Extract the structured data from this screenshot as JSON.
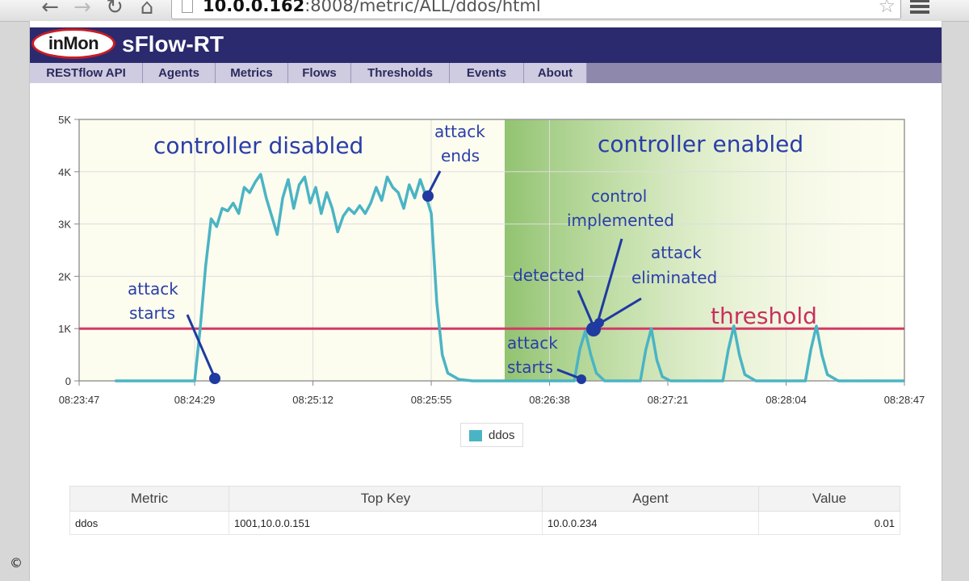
{
  "browser": {
    "back_icon": "←",
    "forward_icon": "→",
    "reload_icon": "↻",
    "home_icon": "⌂",
    "url_host": "10.0.0.162",
    "url_path": ":8008/metric/ALL/ddos/html",
    "star_icon": "☆"
  },
  "header": {
    "logo_text": "inMon",
    "title": "sFlow-RT"
  },
  "nav": {
    "tabs": [
      "RESTflow API",
      "Agents",
      "Metrics",
      "Flows",
      "Thresholds",
      "Events",
      "About"
    ]
  },
  "annotations": {
    "controller_disabled": "controller disabled",
    "controller_enabled": "controller enabled",
    "attack_ends_1": "attack",
    "attack_ends_2": "ends",
    "attack_starts_1": "attack",
    "attack_starts_2": "starts",
    "attack_starts2_1": "attack",
    "attack_starts2_2": "starts",
    "detected": "detected",
    "control_1": "control",
    "control_2": "implemented",
    "eliminated_1": "attack",
    "eliminated_2": "eliminated",
    "threshold": "threshold"
  },
  "chart_data": {
    "type": "line",
    "series": [
      {
        "name": "ddos",
        "color": "#4ab4c4",
        "points": [
          [
            "08:24:00",
            0
          ],
          [
            "08:24:10",
            0
          ],
          [
            "08:24:20",
            0
          ],
          [
            "08:24:29",
            0
          ],
          [
            "08:24:31",
            1000
          ],
          [
            "08:24:33",
            2200
          ],
          [
            "08:24:35",
            3100
          ],
          [
            "08:24:37",
            2950
          ],
          [
            "08:24:39",
            3300
          ],
          [
            "08:24:41",
            3250
          ],
          [
            "08:24:43",
            3400
          ],
          [
            "08:24:45",
            3200
          ],
          [
            "08:24:47",
            3700
          ],
          [
            "08:24:49",
            3600
          ],
          [
            "08:24:51",
            3800
          ],
          [
            "08:24:53",
            3950
          ],
          [
            "08:24:55",
            3500
          ],
          [
            "08:24:57",
            3150
          ],
          [
            "08:24:59",
            2800
          ],
          [
            "08:25:01",
            3500
          ],
          [
            "08:25:03",
            3850
          ],
          [
            "08:25:05",
            3300
          ],
          [
            "08:25:07",
            3750
          ],
          [
            "08:25:09",
            3900
          ],
          [
            "08:25:11",
            3400
          ],
          [
            "08:25:13",
            3700
          ],
          [
            "08:25:15",
            3200
          ],
          [
            "08:25:17",
            3600
          ],
          [
            "08:25:19",
            3300
          ],
          [
            "08:25:21",
            2850
          ],
          [
            "08:25:23",
            3150
          ],
          [
            "08:25:25",
            3300
          ],
          [
            "08:25:27",
            3200
          ],
          [
            "08:25:29",
            3350
          ],
          [
            "08:25:31",
            3200
          ],
          [
            "08:25:33",
            3400
          ],
          [
            "08:25:35",
            3700
          ],
          [
            "08:25:37",
            3450
          ],
          [
            "08:25:39",
            3900
          ],
          [
            "08:25:41",
            3700
          ],
          [
            "08:25:43",
            3600
          ],
          [
            "08:25:45",
            3300
          ],
          [
            "08:25:47",
            3750
          ],
          [
            "08:25:49",
            3500
          ],
          [
            "08:25:51",
            3850
          ],
          [
            "08:25:53",
            3550
          ],
          [
            "08:25:55",
            3200
          ],
          [
            "08:25:57",
            1500
          ],
          [
            "08:25:59",
            500
          ],
          [
            "08:26:01",
            150
          ],
          [
            "08:26:05",
            30
          ],
          [
            "08:26:10",
            0
          ],
          [
            "08:26:40",
            0
          ],
          [
            "08:26:47",
            0
          ],
          [
            "08:26:49",
            600
          ],
          [
            "08:26:51",
            950
          ],
          [
            "08:26:53",
            500
          ],
          [
            "08:26:55",
            150
          ],
          [
            "08:26:58",
            0
          ],
          [
            "08:27:11",
            0
          ],
          [
            "08:27:13",
            600
          ],
          [
            "08:27:15",
            1000
          ],
          [
            "08:27:17",
            400
          ],
          [
            "08:27:19",
            80
          ],
          [
            "08:27:22",
            0
          ],
          [
            "08:27:41",
            0
          ],
          [
            "08:27:43",
            600
          ],
          [
            "08:27:45",
            1050
          ],
          [
            "08:27:47",
            500
          ],
          [
            "08:27:49",
            120
          ],
          [
            "08:27:53",
            0
          ],
          [
            "08:28:11",
            0
          ],
          [
            "08:28:13",
            600
          ],
          [
            "08:28:15",
            1050
          ],
          [
            "08:28:17",
            500
          ],
          [
            "08:28:19",
            120
          ],
          [
            "08:28:23",
            0
          ],
          [
            "08:28:47",
            0
          ]
        ]
      }
    ],
    "threshold": 1000,
    "x_ticks": [
      "08:23:47",
      "08:24:29",
      "08:25:12",
      "08:25:55",
      "08:26:38",
      "08:27:21",
      "08:28:04",
      "08:28:47"
    ],
    "y_ticks": [
      "0",
      "1K",
      "2K",
      "3K",
      "4K",
      "5K"
    ],
    "ylim": [
      0,
      5000
    ],
    "xlim": [
      "08:23:47",
      "08:28:47"
    ],
    "grid": true,
    "legend": "bottom-center"
  },
  "legend": {
    "label": "ddos"
  },
  "table": {
    "headers": [
      "Metric",
      "Top Key",
      "Agent",
      "Value"
    ],
    "rows": [
      [
        "ddos",
        "1001,10.0.0.151",
        "10.0.0.234",
        "0.01"
      ]
    ]
  },
  "footer": {
    "copyright": "©"
  }
}
